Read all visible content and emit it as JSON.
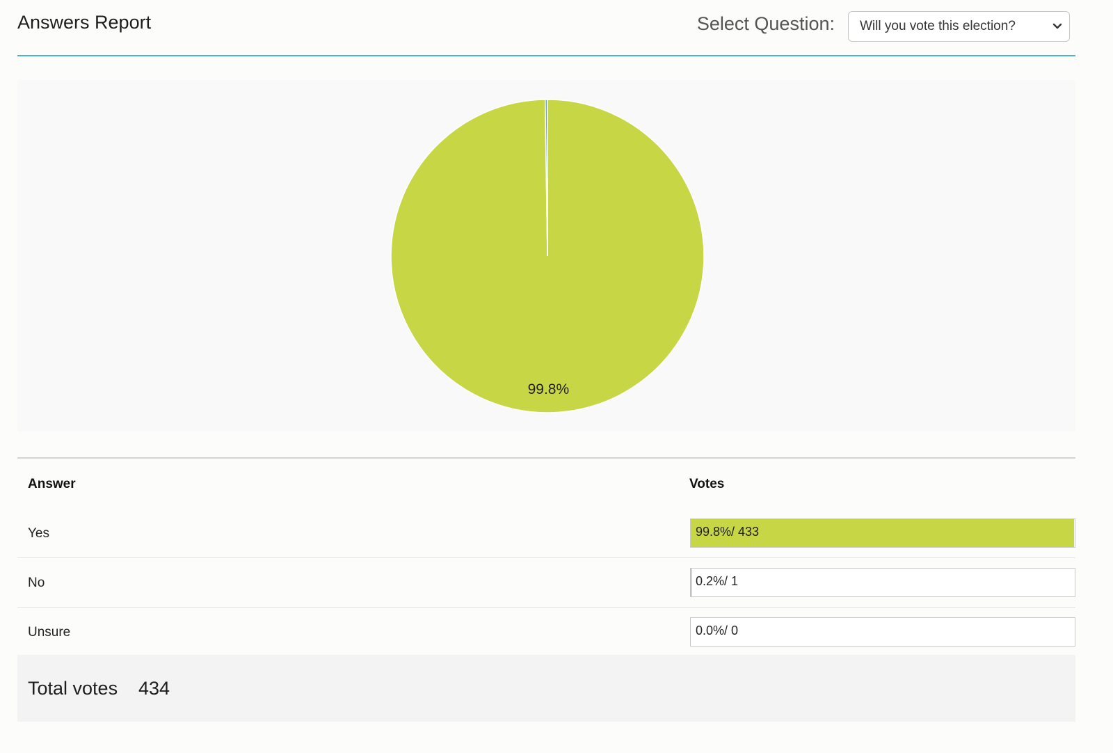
{
  "header": {
    "title": "Answers Report",
    "select_label": "Select Question:",
    "selected_question": "Will you vote this election?"
  },
  "colors": {
    "accent": "#4fb3c9",
    "yes": "#c7d645",
    "no": "#4fb3c9",
    "unsure": "#9b59b6"
  },
  "chart_data": {
    "type": "pie",
    "categories": [
      "Yes",
      "No",
      "Unsure"
    ],
    "values": [
      433,
      1,
      0
    ],
    "slice_labels": [
      "99.8%",
      "",
      ""
    ]
  },
  "table": {
    "headers": {
      "answer": "Answer",
      "votes": "Votes"
    },
    "rows": [
      {
        "answer": "Yes",
        "votes_text": "99.8%/ 433",
        "fraction": 0.998
      },
      {
        "answer": "No",
        "votes_text": "0.2%/ 1",
        "fraction": 0.002
      },
      {
        "answer": "Unsure",
        "votes_text": "0.0%/ 0",
        "fraction": 0.0
      }
    ]
  },
  "total": {
    "label": "Total votes",
    "value": "434"
  }
}
